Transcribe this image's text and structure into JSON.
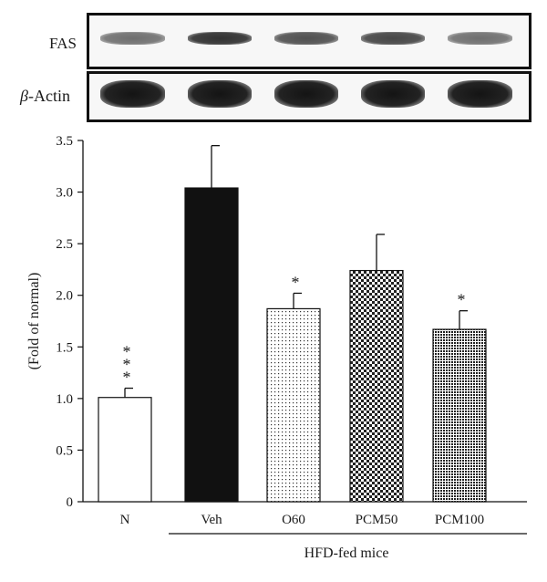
{
  "blots": {
    "fas": {
      "label": "FAS",
      "band_intensity": [
        0.55,
        0.85,
        0.7,
        0.75,
        0.55
      ]
    },
    "actin": {
      "label_italic": "β",
      "label_rest": "-Actin",
      "band_intensity": [
        1,
        1,
        1,
        1,
        1
      ]
    }
  },
  "chart_data": {
    "type": "bar",
    "categories": [
      "N",
      "Veh",
      "O60",
      "PCM50",
      "PCM100"
    ],
    "values": [
      1.01,
      3.04,
      1.87,
      2.24,
      1.67
    ],
    "errors": [
      0.09,
      0.41,
      0.15,
      0.35,
      0.18
    ],
    "significance": [
      "***",
      "",
      "*",
      "",
      "*"
    ],
    "fills": [
      "white",
      "black",
      "sparse-dots",
      "checker",
      "dense-dots"
    ],
    "ylabel": "(Fold of normal)",
    "xlabel": "",
    "ylim": [
      0,
      3.5
    ],
    "yticks": [
      "0",
      "0.5",
      "1.0",
      "1.5",
      "2.0",
      "2.5",
      "3.0",
      "3.5"
    ],
    "group_label": "HFD-fed mice",
    "grid": false
  }
}
